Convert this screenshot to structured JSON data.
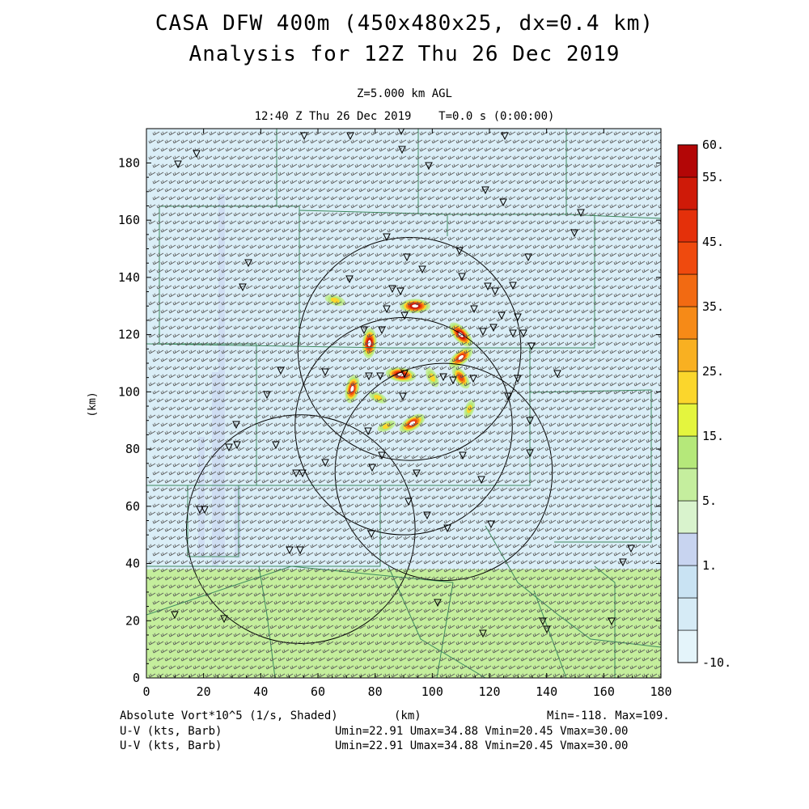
{
  "titles": {
    "line1": "CASA DFW 400m (450x480x25, dx=0.4 km)",
    "line2": "Analysis for 12Z Thu 26 Dec 2019",
    "level": "Z=5.000 km AGL",
    "time": "12:40 Z Thu 26 Dec 2019    T=0.0 s (0:00:00)"
  },
  "footer": {
    "field1": "Absolute Vort*10^5 (1/s, Shaded)",
    "xunits": "(km)",
    "minmax": "Min=-118. Max=109.",
    "field2": "U-V (kts, Barb)",
    "field3": "U-V (kts, Barb)",
    "uv2": "Umin=22.91 Umax=34.88 Vmin=20.45 Vmax=30.00",
    "uv3": "Umin=22.91 Umax=34.88 Vmin=20.45 Vmax=30.00"
  },
  "chart_data": {
    "type": "heatmap",
    "field": "Absolute Vort*10^5 (1/s, Shaded)",
    "xlabel": "",
    "ylabel": "(km)",
    "xlim": [
      0,
      180
    ],
    "ylim": [
      0,
      192
    ],
    "x_ticks": [
      0,
      20,
      40,
      60,
      80,
      100,
      120,
      140,
      160,
      180
    ],
    "y_ticks": [
      0,
      20,
      40,
      60,
      80,
      100,
      120,
      140,
      160,
      180
    ],
    "colorbar": {
      "labels": [
        {
          "value": -10,
          "text": "-10."
        },
        {
          "value": 1,
          "text": "1."
        },
        {
          "value": 5,
          "text": "5."
        },
        {
          "value": 15,
          "text": "15."
        },
        {
          "value": 25,
          "text": "25."
        },
        {
          "value": 35,
          "text": "35."
        },
        {
          "value": 45,
          "text": "45."
        },
        {
          "value": 55,
          "text": "55."
        },
        {
          "value": 60,
          "text": "60."
        }
      ],
      "bins": [
        {
          "from": -10,
          "to": -5,
          "color": "#e4f4fa"
        },
        {
          "from": -5,
          "to": 0,
          "color": "#d6ebf6"
        },
        {
          "from": 0,
          "to": 1,
          "color": "#c9e3f3"
        },
        {
          "from": 1,
          "to": 2.5,
          "color": "#c8d4f0"
        },
        {
          "from": 2.5,
          "to": 5,
          "color": "#d9f3cd"
        },
        {
          "from": 5,
          "to": 10,
          "color": "#c5ee9e"
        },
        {
          "from": 10,
          "to": 15,
          "color": "#b5e87a"
        },
        {
          "from": 15,
          "to": 20,
          "color": "#e4f53e"
        },
        {
          "from": 20,
          "to": 25,
          "color": "#fbd62c"
        },
        {
          "from": 25,
          "to": 30,
          "color": "#f9b021"
        },
        {
          "from": 30,
          "to": 35,
          "color": "#f68a17"
        },
        {
          "from": 35,
          "to": 40,
          "color": "#f26a12"
        },
        {
          "from": 40,
          "to": 45,
          "color": "#ef4a0e"
        },
        {
          "from": 45,
          "to": 50,
          "color": "#e4300a"
        },
        {
          "from": 50,
          "to": 55,
          "color": "#cf1a08"
        },
        {
          "from": 55,
          "to": 60,
          "color": "#b30606"
        }
      ]
    },
    "background_regions": [
      {
        "name": "north",
        "y_range": [
          38,
          192
        ],
        "value": "-10 to 1",
        "color": "#daeef7"
      },
      {
        "name": "south",
        "y_range": [
          0,
          38
        ],
        "value": "5 to 10",
        "color": "#c4ee9c"
      }
    ],
    "vorticity_features": [
      {
        "x": 94,
        "y": 130,
        "value": 60
      },
      {
        "x": 110,
        "y": 120,
        "value": 60
      },
      {
        "x": 78,
        "y": 117,
        "value": 60
      },
      {
        "x": 110,
        "y": 112,
        "value": 55
      },
      {
        "x": 89,
        "y": 106,
        "value": 60
      },
      {
        "x": 110,
        "y": 105,
        "value": 45
      },
      {
        "x": 72,
        "y": 101,
        "value": 55
      },
      {
        "x": 93,
        "y": 89,
        "value": 55
      },
      {
        "x": 66,
        "y": 132,
        "value": 30
      },
      {
        "x": 100,
        "y": 105,
        "value": 30
      },
      {
        "x": 113,
        "y": 94,
        "value": 25
      },
      {
        "x": 84,
        "y": 88,
        "value": 25
      },
      {
        "x": 81,
        "y": 98,
        "value": 25
      }
    ],
    "radar_rings": [
      {
        "cx": 92,
        "cy": 115,
        "r": 39
      },
      {
        "cx": 90,
        "cy": 88,
        "r": 38
      },
      {
        "cx": 104,
        "cy": 72,
        "r": 38
      },
      {
        "cx": 54,
        "cy": 52,
        "r": 40
      }
    ],
    "wind_barb": {
      "speed_range_kts": [
        22.91,
        34.88
      ],
      "direction": "southwesterly"
    },
    "colors": {
      "county_lines": "#3d8b5f",
      "barbs": "#555555",
      "frame": "#000000"
    }
  }
}
